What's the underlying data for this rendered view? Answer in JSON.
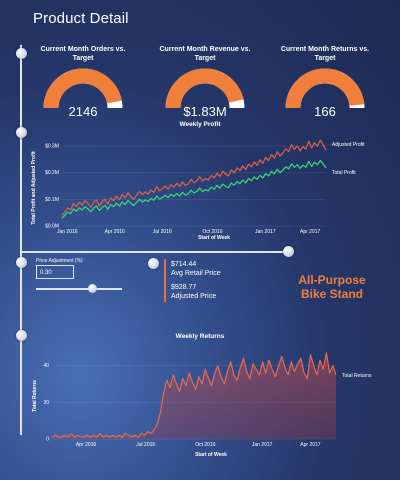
{
  "page": {
    "title": "Product Detail"
  },
  "gauges": [
    {
      "title": "Current Month Orders vs. Target",
      "value_label": "2146",
      "fraction": 0.94
    },
    {
      "title": "Current Month Revenue vs. Target",
      "value_label": "$1.83M",
      "fraction": 0.93
    },
    {
      "title": "Current Month Returns vs. Target",
      "value_label": "166",
      "fraction": 0.97
    }
  ],
  "colors": {
    "accent": "#f07f3c",
    "profit_line": "#e8613f",
    "total_profit_line": "#35e07a",
    "returns_line": "#e86a52",
    "gauge_track": "#ffffff"
  },
  "controls": {
    "price_adjustment_label": "Price Adjustment (%)",
    "price_adjustment_value": "0.30",
    "slider_fraction": 0.62
  },
  "info": {
    "avg_retail_price": "$714.44",
    "avg_retail_label": "Avg Retail Price",
    "adjusted_price": "$928.77",
    "adjusted_label": "Adjusted Price"
  },
  "product": {
    "line1": "All-Purpose",
    "line2": "Bike Stand"
  },
  "chart_data": [
    {
      "type": "line",
      "title": "Weekly Profit",
      "xlabel": "Start of Week",
      "ylabel": "Total Profit and Adjusted Profit",
      "x_ticks": [
        "Jan 2016",
        "Apr 2016",
        "Jul 2016",
        "Oct 2016",
        "Jan 2017",
        "Apr 2017"
      ],
      "y_ticks": [
        "$0.0M",
        "$0.1M",
        "$0.2M",
        "$0.3M"
      ],
      "ylim": [
        0,
        0.33
      ],
      "series": [
        {
          "name": "Adjusted Profit",
          "values": [
            0.04,
            0.052,
            0.068,
            0.06,
            0.085,
            0.072,
            0.09,
            0.078,
            0.095,
            0.085,
            0.07,
            0.088,
            0.098,
            0.075,
            0.092,
            0.1,
            0.082,
            0.105,
            0.095,
            0.112,
            0.098,
            0.118,
            0.105,
            0.125,
            0.11,
            0.1,
            0.115,
            0.13,
            0.118,
            0.128,
            0.12,
            0.135,
            0.125,
            0.148,
            0.132,
            0.14,
            0.15,
            0.138,
            0.155,
            0.145,
            0.16,
            0.148,
            0.165,
            0.152,
            0.158,
            0.175,
            0.162,
            0.17,
            0.185,
            0.168,
            0.178,
            0.172,
            0.19,
            0.18,
            0.198,
            0.185,
            0.205,
            0.195,
            0.188,
            0.21,
            0.2,
            0.218,
            0.208,
            0.225,
            0.212,
            0.232,
            0.222,
            0.24,
            0.228,
            0.248,
            0.235,
            0.258,
            0.245,
            0.268,
            0.255,
            0.278,
            0.262,
            0.275,
            0.29,
            0.28,
            0.305,
            0.288,
            0.3,
            0.282,
            0.298,
            0.288,
            0.318,
            0.292,
            0.312,
            0.3,
            0.322,
            0.305,
            0.285
          ]
        },
        {
          "name": "Total Profit",
          "values": [
            0.03,
            0.04,
            0.052,
            0.046,
            0.064,
            0.055,
            0.068,
            0.06,
            0.072,
            0.065,
            0.054,
            0.067,
            0.075,
            0.058,
            0.07,
            0.077,
            0.063,
            0.08,
            0.073,
            0.086,
            0.075,
            0.09,
            0.08,
            0.096,
            0.085,
            0.077,
            0.088,
            0.1,
            0.09,
            0.098,
            0.092,
            0.103,
            0.096,
            0.113,
            0.101,
            0.107,
            0.115,
            0.106,
            0.119,
            0.111,
            0.122,
            0.113,
            0.126,
            0.116,
            0.121,
            0.134,
            0.124,
            0.13,
            0.142,
            0.129,
            0.136,
            0.132,
            0.146,
            0.138,
            0.152,
            0.142,
            0.157,
            0.149,
            0.144,
            0.161,
            0.153,
            0.167,
            0.159,
            0.172,
            0.162,
            0.178,
            0.17,
            0.184,
            0.175,
            0.19,
            0.18,
            0.197,
            0.188,
            0.205,
            0.195,
            0.213,
            0.2,
            0.21,
            0.222,
            0.214,
            0.233,
            0.22,
            0.23,
            0.216,
            0.228,
            0.22,
            0.243,
            0.223,
            0.239,
            0.23,
            0.246,
            0.233,
            0.218
          ]
        }
      ]
    },
    {
      "type": "area",
      "title": "Weekly Returns",
      "xlabel": "Start of Week",
      "ylabel": "Total Returns",
      "x_ticks": [
        "Apr 2016",
        "Jul 2016",
        "Oct 2016",
        "Jan 2017",
        "Apr 2017"
      ],
      "y_ticks": [
        "0",
        "20",
        "40"
      ],
      "ylim": [
        0,
        48
      ],
      "series": [
        {
          "name": "Total Returns",
          "values": [
            1,
            2,
            1,
            1,
            2,
            1,
            3,
            1,
            2,
            1,
            1,
            2,
            1,
            2,
            1,
            3,
            1,
            2,
            1,
            2,
            1,
            2,
            1,
            3,
            2,
            1,
            2,
            1,
            3,
            2,
            4,
            3,
            5,
            8,
            15,
            25,
            32,
            28,
            35,
            30,
            26,
            33,
            29,
            36,
            31,
            27,
            34,
            30,
            38,
            33,
            29,
            36,
            40,
            34,
            30,
            37,
            42,
            35,
            32,
            39,
            44,
            37,
            33,
            41,
            38,
            35,
            42,
            36,
            43,
            38,
            34,
            40,
            45,
            39,
            35,
            42,
            37,
            41,
            44,
            36,
            33,
            46,
            40,
            35,
            43,
            38,
            47,
            36,
            40,
            35
          ]
        }
      ]
    }
  ]
}
